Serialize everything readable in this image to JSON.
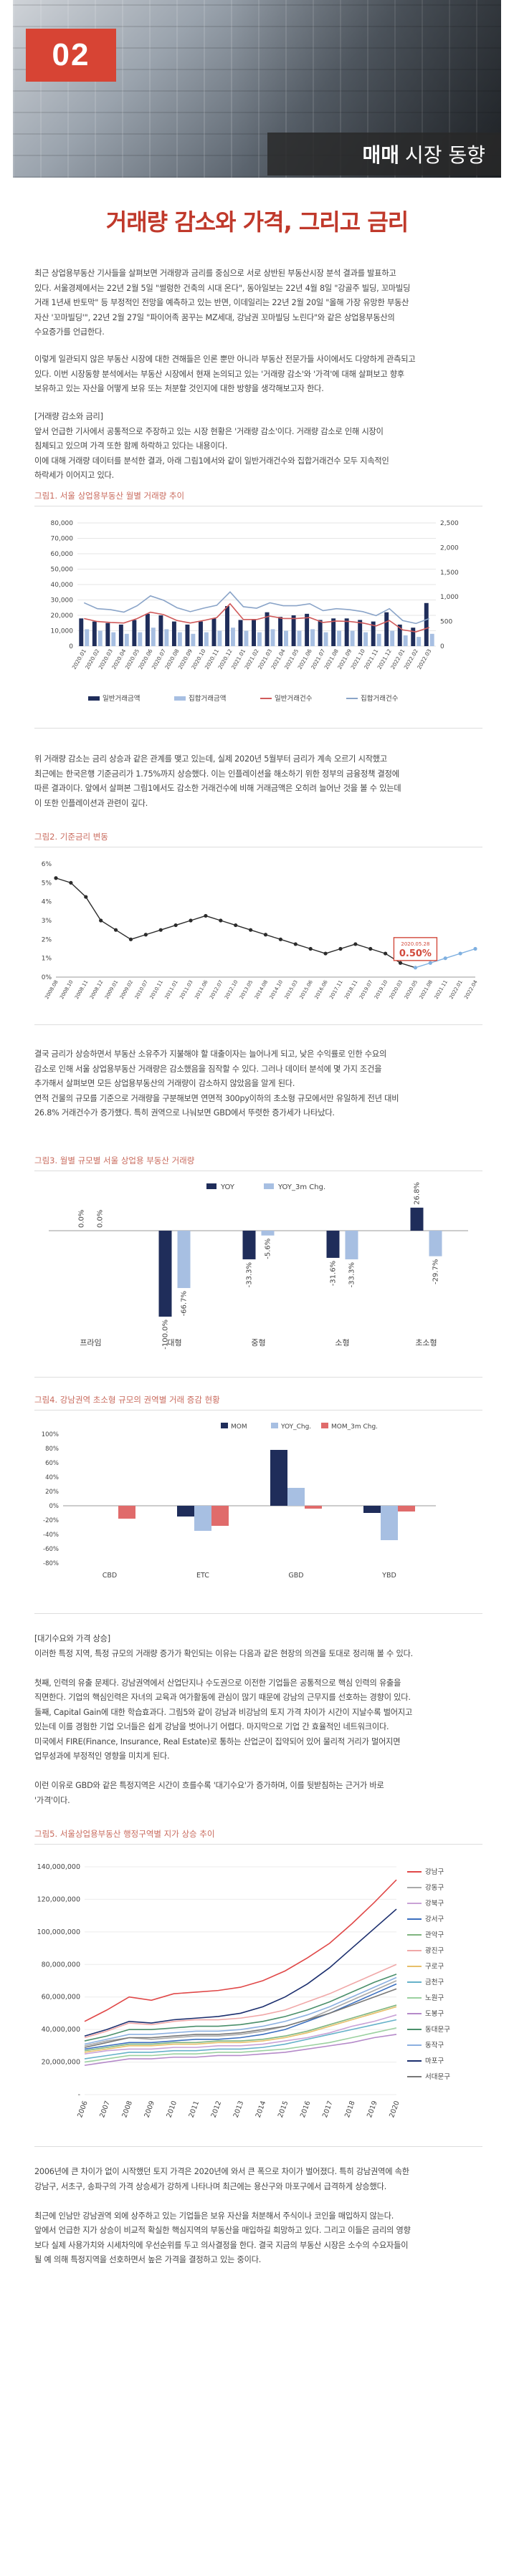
{
  "header": {
    "section_number": "02",
    "section_bold": "매매",
    "section_rest": "시장 동향"
  },
  "title": "거래량 감소와 가격, 그리고 금리",
  "paragraphs": {
    "p1": [
      "최근 상업용부동산 기사들을 살펴보면 거래량과 금리를 중심으로 서로 상반된 부동산시장 분석 결과를 발표하고",
      "있다. 서울경제에서는 22년 2월 5일 \"썰렁한 건축의 시대 온다\", 동아일보는 22년 4월 8일 \"강골주 빌딩, 꼬마빌딩",
      "거래 1년새 반토막\" 등 부정적인 전망을 예측하고 있는 반면, 이데일리는 22년 2월 20일 \"올해 가장 유망한 부동산",
      "자산 '꼬마빌딩'\", 22년 2월 27일 \"파이어족 꿈꾸는 MZ세대, 강남권 꼬마빌딩 노린다\"와 같은 상업용부동산의",
      "수요증가를 언급한다."
    ],
    "p2": [
      "이렇게 일관되지 않은 부동산 시장에 대한 견해들은 인론 뿐만 아니라 부동산 전문가들 사이에서도 다양하게 관측되고",
      "있다. 이번 시장동향 분석에서는 부동산 시장에서 현재 논의되고 있는 '거래량 감소'와 '가격'에 대해 살펴보고 향후",
      "보유하고 있는 자산을 어떻게 보유 또는 처분할 것인지에 대한 방향을 생각해보고자 한다."
    ],
    "p3": [
      "[거래량 감소와 금리]",
      "앞서 언급한 기사에서 공통적으로 주장하고 있는 시장 현황은 '거래량 감소'이다. 거래량 감소로 인해 시장이",
      "침체되고 있으며 가격 또한 함께 하락하고 있다는 내용이다.",
      "이에 대해 거래량 데이터를 분석한 결과, 아래 그림1에서와 같이 일반거래건수와 집합거래건수 모두 지속적인",
      "하락세가 이어지고 있다."
    ],
    "p4": [
      "위 거래량 감소는 금리 상승과 같은 관계를 맺고 있는데, 실제 2020년 5월부터 금리가 계속 오르기 시작했고",
      "최근에는 한국은행 기준금리가 1.75%까지 상승했다. 이는 인플레이션을 해소하기 위한 정부의 금융정책 결정에",
      "따른 결과이다. 앞에서 살펴본 그림1에서도 감소한 거래건수에 비해 거래금액은 오히려 늘어난 것을 볼 수 있는데",
      "이 또한 인플레이션과 관련이 깊다."
    ],
    "p5": [
      "결국 금리가 상승하면서 부동산 소유주가 지불해야 할 대출이자는 늘어나게 되고, 낮은 수익률로 인한 수요의",
      "감소로 인해 서울 상업용부동산 거래량은 감소했음을 짐작할 수 있다. 그러나 데이터 분석에 몇 가지 조건을",
      "추가해서 살펴보면 모든 상업용부동산의 거래량이 감소하지 않았음을 알게 된다.",
      " 연적 건물의 규모를 기준으로 거래량을 구분해보면 연면적 300py이하의 초소형 규모에서만 유일하게 전년 대비",
      "26.8% 거래건수가 증가했다. 특히 권역으로 나눠보면 GBD에서 뚜렷한 증가세가 나타났다."
    ],
    "p6": [
      "[대기수요와 가격 상승]",
      "이러한 특정 지역, 특정 규모의 거래량 증가가 확인되는 이유는 다음과 같은 현장의 의견을 토대로 정리해 볼 수 있다.",
      "",
      "첫째, 인력의 유출 문제다. 강남권역에서 산업단지나 수도권으로 이전한 기업들은 공통적으로 핵심 인력의 유출을",
      "직면한다. 기업의 핵심인력은 자녀의 교육과 여가활동에 관심이 많기 때문에 강남의 근무지를 선호하는 경향이 있다.",
      "둘째, Capital Gain에 대한 학습효과다. 그림5와 같이 강남과 비강남의 토지 가격 차이가 시간이 지날수록 벌어지고",
      "있는데 이를 경험한 기업 오너들은 쉽게 강남을 벗어나기 어렵다. 마지막으로 기업 간 효율적인 네트워크이다.",
      "미국에서 FIRE(Finance, Insurance, Real Estate)로 통하는 산업군이 집약되어 있어 물리적 거리가 멀어지면",
      "업무성과에 부정적인 영향을 미치게 된다.",
      "",
      "이런 이유로 GBD와 같은 특정지역은 시간이 흐를수록 '대기수요'가 증가하며, 이를 뒷받침하는 근거가 바로",
      "'가격'이다."
    ],
    "p7": [
      "2006년에 큰 차이가 없이 시작했던 토지 가격은 2020년에 와서 큰 폭으로 차이가 벌어졌다. 특히 강남권역에 속한",
      "강남구, 서초구, 송파구의 가격 상승세가 강하게 나타나며 최근에는 용산구와 마포구에서 급격하게 상승했다.",
      "",
      "최근에 인남만 강남권역 외에 상주하고 있는 기업들은 보유 자산을 처분해서 주식이나 코인을 매입하지 않는다.",
      "앞에서 언급한 지가 상승이 비교적 확실한 핵심지역의 부동산을 매입하길 희망하고 있다. 그리고 이들은 금리의 영향",
      "보다 실제 사용가치와 시세차익에 우선순위를 두고 의사결정을 한다. 결국 지금의 부동산 시장은 소수의 수요자들이",
      "될 예 의해 특정지역을 선호하면서 높은 가격을 결정하고 있는 중이다."
    ]
  },
  "fig1": {
    "title": "그림1. 서울 상업용부동산 월별 거래량 추이",
    "chart_data": {
      "type": "bar+line",
      "categories": [
        "2020.01",
        "2020.02",
        "2020.03",
        "2020.04",
        "2020.05",
        "2020.06",
        "2020.07",
        "2020.08",
        "2020.09",
        "2020.10",
        "2020.11",
        "2020.12",
        "2021.01",
        "2021.02",
        "2021.03",
        "2021.04",
        "2021.05",
        "2021.06",
        "2021.07",
        "2021.08",
        "2021.09",
        "2021.10",
        "2021.11",
        "2021.12",
        "2022.01",
        "2022.02",
        "2022.03"
      ],
      "ylim_left": [
        0,
        80000
      ],
      "yticks_left": [
        0,
        10000,
        20000,
        30000,
        40000,
        50000,
        60000,
        70000,
        80000
      ],
      "ylim_right": [
        0,
        2500
      ],
      "yticks_right": [
        0,
        500,
        1000,
        1500,
        2000,
        2500
      ],
      "series": [
        {
          "name": "일반거래금액",
          "kind": "bar",
          "color": "#1f2d5a",
          "values": [
            18000,
            16000,
            15000,
            14000,
            17000,
            21000,
            20000,
            16000,
            14000,
            16000,
            18000,
            26000,
            17000,
            17000,
            22000,
            19000,
            20000,
            21000,
            17000,
            18000,
            18000,
            17000,
            16000,
            22000,
            14000,
            12000,
            28000
          ]
        },
        {
          "name": "집합거래금액",
          "kind": "bar",
          "color": "#a7bfe2",
          "values": [
            11000,
            10000,
            9000,
            8000,
            9000,
            12000,
            11000,
            9000,
            8000,
            9000,
            10000,
            12000,
            10000,
            9000,
            11000,
            10000,
            10000,
            11000,
            9000,
            10000,
            10000,
            9000,
            8000,
            10000,
            7000,
            6000,
            8000
          ]
        },
        {
          "name": "일반거래건수",
          "kind": "line",
          "color": "#d05a5a",
          "values": [
            560,
            500,
            480,
            470,
            560,
            690,
            640,
            520,
            470,
            520,
            580,
            860,
            540,
            540,
            610,
            560,
            560,
            580,
            480,
            510,
            500,
            470,
            410,
            520,
            330,
            290,
            380
          ]
        },
        {
          "name": "집합거래건수",
          "kind": "line",
          "color": "#8aa4c8",
          "values": [
            880,
            760,
            740,
            690,
            820,
            1020,
            930,
            780,
            700,
            770,
            830,
            1100,
            800,
            770,
            880,
            820,
            820,
            860,
            720,
            760,
            740,
            700,
            620,
            760,
            520,
            460,
            560
          ]
        }
      ]
    }
  },
  "fig2": {
    "title": "그림2. 기준금리 변동",
    "chart_data": {
      "type": "line",
      "categories": [
        "2008.08",
        "2008.10",
        "2008.11",
        "2008.12",
        "2009.01",
        "2009.02",
        "2010.07",
        "2010.11",
        "2011.01",
        "2011.03",
        "2011.06",
        "2012.07",
        "2012.10",
        "2013.05",
        "2014.08",
        "2014.10",
        "2015.03",
        "2015.06",
        "2016.06",
        "2017.11",
        "2018.11",
        "2019.07",
        "2019.10",
        "2020.03",
        "2020.05",
        "2021.08",
        "2021.11",
        "2022.01",
        "2022.04"
      ],
      "values": [
        5.25,
        5.0,
        4.25,
        3.0,
        2.5,
        2.0,
        2.25,
        2.5,
        2.75,
        3.0,
        3.25,
        3.0,
        2.75,
        2.5,
        2.25,
        2.0,
        1.75,
        1.5,
        1.25,
        1.5,
        1.75,
        1.5,
        1.25,
        0.75,
        0.5,
        0.75,
        1.0,
        1.25,
        1.5
      ],
      "ylim": [
        0,
        6
      ],
      "yticks": [
        "0%",
        "1%",
        "2%",
        "3%",
        "4%",
        "5%",
        "6%"
      ],
      "annotation": {
        "date": "2020.05.28",
        "value": "0.50%"
      }
    }
  },
  "fig3": {
    "title": "그림3. 월별 규모별 서울 상업용 부동산 거래량",
    "chart_data": {
      "type": "bar",
      "categories": [
        "프라임",
        "대형",
        "중형",
        "소형",
        "초소형"
      ],
      "series": [
        {
          "name": "YOY",
          "color": "#1f2d5a",
          "values": [
            0.0,
            -100.0,
            -33.3,
            -31.6,
            26.8
          ],
          "labels": [
            "0.0%",
            "-100.0%",
            "-33.3%",
            "-31.6%",
            "26.8%"
          ]
        },
        {
          "name": "YOY_3m Chg.",
          "color": "#a7bfe2",
          "values": [
            0.0,
            -66.7,
            -5.6,
            -33.3,
            -29.7
          ],
          "labels": [
            "0.0%",
            "-66.7%",
            "-5.6%",
            "-33.3%",
            "-29.7%"
          ]
        }
      ]
    }
  },
  "fig4": {
    "title": "그림4. 강남권역 초소형 규모의 권역별 거래 증감 현황",
    "chart_data": {
      "type": "bar",
      "categories": [
        "CBD",
        "ETC",
        "GBD",
        "YBD"
      ],
      "ylim": [
        -80,
        100
      ],
      "yticks": [
        "-80%",
        "-60%",
        "-40%",
        "-20%",
        "0%",
        "20%",
        "40%",
        "60%",
        "80%",
        "100%"
      ],
      "series": [
        {
          "name": "MOM",
          "color": "#1f2d5a",
          "values": [
            0,
            -15,
            78,
            -10
          ]
        },
        {
          "name": "YOY_Chg.",
          "color": "#a7bfe2",
          "values": [
            0,
            -35,
            25,
            -48
          ]
        },
        {
          "name": "MOM_3m Chg.",
          "color": "#e06b6b",
          "values": [
            -18,
            -28,
            -4,
            -8
          ]
        }
      ]
    }
  },
  "fig5": {
    "title": "그림5. 서울상업용부동산 행정구역별 지가 상승 추이",
    "chart_data": {
      "type": "line",
      "categories": [
        "2006",
        "2007",
        "2008",
        "2009",
        "2010",
        "2011",
        "2012",
        "2013",
        "2014",
        "2015",
        "2016",
        "2017",
        "2018",
        "2019",
        "2020"
      ],
      "ylim": [
        0,
        140000000
      ],
      "yticks": [
        "-",
        "20,000,000",
        "40,000,000",
        "60,000,000",
        "80,000,000",
        "100,000,000",
        "120,000,000",
        "140,000,000"
      ],
      "series": [
        {
          "name": "강남구",
          "color": "#e04848",
          "values": [
            45000000,
            52000000,
            60000000,
            58000000,
            62000000,
            63000000,
            64000000,
            66000000,
            70000000,
            76000000,
            84000000,
            93000000,
            105000000,
            118000000,
            132000000
          ]
        },
        {
          "name": "강동구",
          "color": "#a9a9a9",
          "values": [
            30000000,
            33000000,
            35000000,
            34000000,
            35000000,
            36000000,
            36000000,
            37000000,
            39000000,
            42000000,
            46000000,
            52000000,
            58000000,
            64000000,
            70000000
          ]
        },
        {
          "name": "강북구",
          "color": "#c9a2d6",
          "values": [
            25000000,
            27000000,
            28000000,
            28000000,
            29000000,
            29000000,
            30000000,
            30000000,
            31000000,
            33000000,
            35000000,
            38000000,
            42000000,
            45000000,
            49000000
          ]
        },
        {
          "name": "강서구",
          "color": "#3b6fbf",
          "values": [
            28000000,
            30000000,
            32000000,
            32000000,
            33000000,
            34000000,
            34000000,
            35000000,
            37000000,
            40000000,
            45000000,
            50000000,
            56000000,
            62000000,
            68000000
          ]
        },
        {
          "name": "관악구",
          "color": "#7fb57f",
          "values": [
            27000000,
            29000000,
            31000000,
            31000000,
            32000000,
            32000000,
            33000000,
            33000000,
            34000000,
            36000000,
            39000000,
            43000000,
            47000000,
            51000000,
            55000000
          ]
        },
        {
          "name": "광진구",
          "color": "#f0a8a8",
          "values": [
            35000000,
            39000000,
            44000000,
            43000000,
            45000000,
            46000000,
            46000000,
            47000000,
            49000000,
            52000000,
            57000000,
            62000000,
            68000000,
            74000000,
            80000000
          ]
        },
        {
          "name": "구로구",
          "color": "#e7c06a",
          "values": [
            26000000,
            28000000,
            30000000,
            30000000,
            31000000,
            31000000,
            32000000,
            32000000,
            33000000,
            35000000,
            38000000,
            42000000,
            46000000,
            50000000,
            54000000
          ]
        },
        {
          "name": "금천구",
          "color": "#66b2c9",
          "values": [
            22000000,
            24000000,
            26000000,
            26000000,
            27000000,
            27000000,
            28000000,
            28000000,
            29000000,
            31000000,
            34000000,
            37000000,
            40000000,
            43000000,
            46000000
          ]
        },
        {
          "name": "노원구",
          "color": "#9bd1a0",
          "values": [
            20000000,
            22000000,
            24000000,
            24000000,
            25000000,
            25000000,
            26000000,
            26000000,
            27000000,
            28000000,
            30000000,
            32000000,
            35000000,
            38000000,
            41000000
          ]
        },
        {
          "name": "도봉구",
          "color": "#b58ac9",
          "values": [
            18000000,
            20000000,
            22000000,
            22000000,
            23000000,
            23000000,
            24000000,
            24000000,
            25000000,
            26000000,
            28000000,
            30000000,
            32000000,
            35000000,
            37000000
          ]
        },
        {
          "name": "동대문구",
          "color": "#4a8f6a",
          "values": [
            33000000,
            36000000,
            40000000,
            40000000,
            41000000,
            42000000,
            42000000,
            43000000,
            45000000,
            48000000,
            52000000,
            57000000,
            63000000,
            69000000,
            74000000
          ]
        },
        {
          "name": "동작구",
          "color": "#8cb0e0",
          "values": [
            31000000,
            34000000,
            37000000,
            37000000,
            38000000,
            39000000,
            39000000,
            40000000,
            42000000,
            45000000,
            49000000,
            54000000,
            60000000,
            66000000,
            72000000
          ]
        },
        {
          "name": "마포구",
          "color": "#1c2f6e",
          "values": [
            36000000,
            40000000,
            45000000,
            44000000,
            46000000,
            47000000,
            48000000,
            50000000,
            54000000,
            60000000,
            68000000,
            78000000,
            90000000,
            102000000,
            114000000
          ]
        },
        {
          "name": "서대문구",
          "color": "#777777",
          "values": [
            29000000,
            32000000,
            35000000,
            35000000,
            36000000,
            37000000,
            37000000,
            38000000,
            40000000,
            42000000,
            46000000,
            50000000,
            55000000,
            60000000,
            65000000
          ]
        }
      ]
    }
  }
}
